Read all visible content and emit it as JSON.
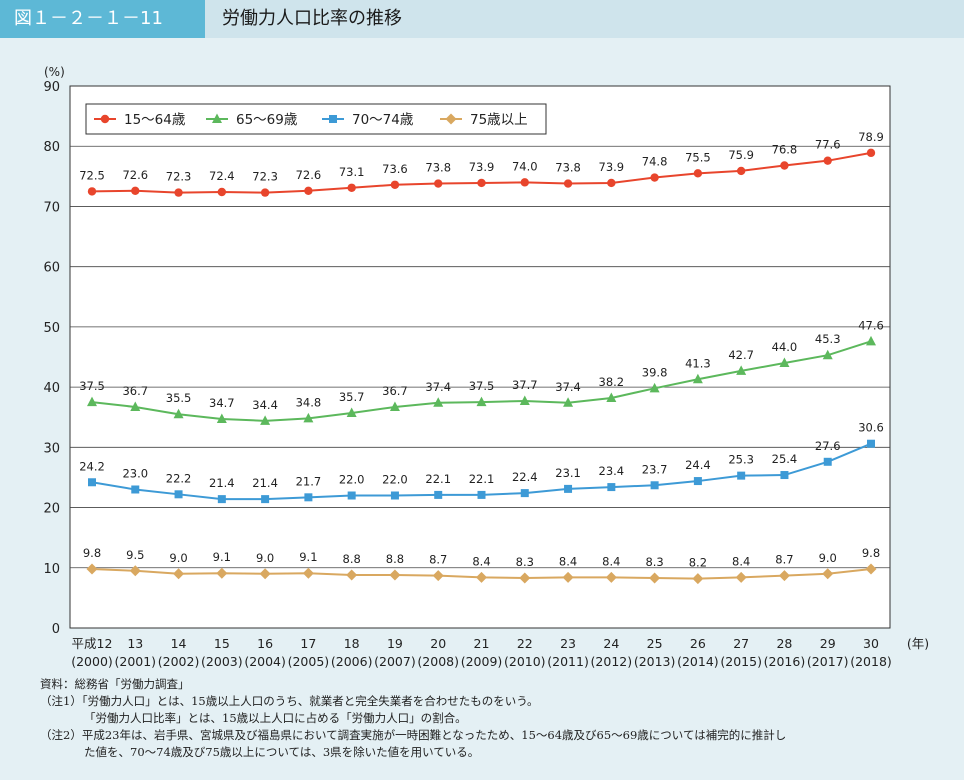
{
  "header": {
    "figure_label": "図１－２－１－11",
    "title": "労働力人口比率の推移"
  },
  "chart_data": {
    "type": "line",
    "ylabel": "(%)",
    "xunit": "(年)",
    "ylim": [
      0,
      90
    ],
    "yticks": [
      0,
      10,
      20,
      30,
      40,
      50,
      60,
      70,
      80,
      90
    ],
    "grid": "horizontal",
    "legend_position": "top-left",
    "categories": [
      "平成12",
      "13",
      "14",
      "15",
      "16",
      "17",
      "18",
      "19",
      "20",
      "21",
      "22",
      "23",
      "24",
      "25",
      "26",
      "27",
      "28",
      "29",
      "30"
    ],
    "categories_sub": [
      "(2000)",
      "(2001)",
      "(2002)",
      "(2003)",
      "(2004)",
      "(2005)",
      "(2006)",
      "(2007)",
      "(2008)",
      "(2009)",
      "(2010)",
      "(2011)",
      "(2012)",
      "(2013)",
      "(2014)",
      "(2015)",
      "(2016)",
      "(2017)",
      "(2018)"
    ],
    "series": [
      {
        "name": "15～64歳",
        "color": "#e8452c",
        "marker": "circle",
        "values": [
          72.5,
          72.6,
          72.3,
          72.4,
          72.3,
          72.6,
          73.1,
          73.6,
          73.8,
          73.9,
          74.0,
          73.8,
          73.9,
          74.8,
          75.5,
          75.9,
          76.8,
          77.6,
          78.9
        ],
        "labels": [
          "72.5",
          "72.6",
          "72.3",
          "72.4",
          "72.3",
          "72.6",
          "73.1",
          "73.6",
          "73.8",
          "73.9",
          "74.0",
          "73.8",
          "73.9",
          "74.8",
          "75.5",
          "75.9",
          "76.8",
          "77.6",
          "78.9"
        ]
      },
      {
        "name": "65～69歳",
        "color": "#5cb85c",
        "marker": "triangle",
        "values": [
          37.5,
          36.7,
          35.5,
          34.7,
          34.4,
          34.8,
          35.7,
          36.7,
          37.4,
          37.5,
          37.7,
          37.4,
          38.2,
          39.8,
          41.3,
          42.7,
          44.0,
          45.3,
          47.6
        ],
        "labels": [
          "37.5",
          "36.7",
          "35.5",
          "34.7",
          "34.4",
          "34.8",
          "35.7",
          "36.7",
          "37.4",
          "37.5",
          "37.7",
          "37.4",
          "38.2",
          "39.8",
          "41.3",
          "42.7",
          "44.0",
          "45.3",
          "47.6"
        ]
      },
      {
        "name": "70～74歳",
        "color": "#3d9ad6",
        "marker": "square",
        "values": [
          24.2,
          23.0,
          22.2,
          21.4,
          21.4,
          21.7,
          22.0,
          22.0,
          22.1,
          22.1,
          22.4,
          23.1,
          23.4,
          23.7,
          24.4,
          25.3,
          25.4,
          27.6,
          30.6
        ],
        "labels": [
          "24.2",
          "23.0",
          "22.2",
          "21.4",
          "21.4",
          "21.7",
          "22.0",
          "22.0",
          "22.1",
          "22.1",
          "22.4",
          "23.1",
          "23.4",
          "23.7",
          "24.4",
          "25.3",
          "25.4",
          "27.6",
          "30.6"
        ]
      },
      {
        "name": "75歳以上",
        "color": "#d9a860",
        "marker": "diamond",
        "values": [
          9.8,
          9.5,
          9.0,
          9.1,
          9.0,
          9.1,
          8.8,
          8.8,
          8.7,
          8.4,
          8.3,
          8.4,
          8.4,
          8.3,
          8.2,
          8.4,
          8.7,
          9.0,
          9.8
        ],
        "labels": [
          "9.8",
          "9.5",
          "9.0",
          "9.1",
          "9.0",
          "9.1",
          "8.8",
          "8.8",
          "8.7",
          "8.4",
          "8.3",
          "8.4",
          "8.4",
          "8.3",
          "8.2",
          "8.4",
          "8.7",
          "9.0",
          "9.8"
        ]
      }
    ]
  },
  "notes": {
    "source": "資料：総務省「労働力調査」",
    "note1a": "（注1）「労働力人口」とは、15歳以上人口のうち、就業者と完全失業者を合わせたものをいう。",
    "note1b": "「労働力人口比率」とは、15歳以上人口に占める「労働力人口」の割合。",
    "note2a": "（注2）平成23年は、岩手県、宮城県及び福島県において調査実施が一時困難となったため、15～64歳及び65～69歳については補完的に推計し",
    "note2b": "た値を、70～74歳及び75歳以上については、3県を除いた値を用いている。"
  }
}
